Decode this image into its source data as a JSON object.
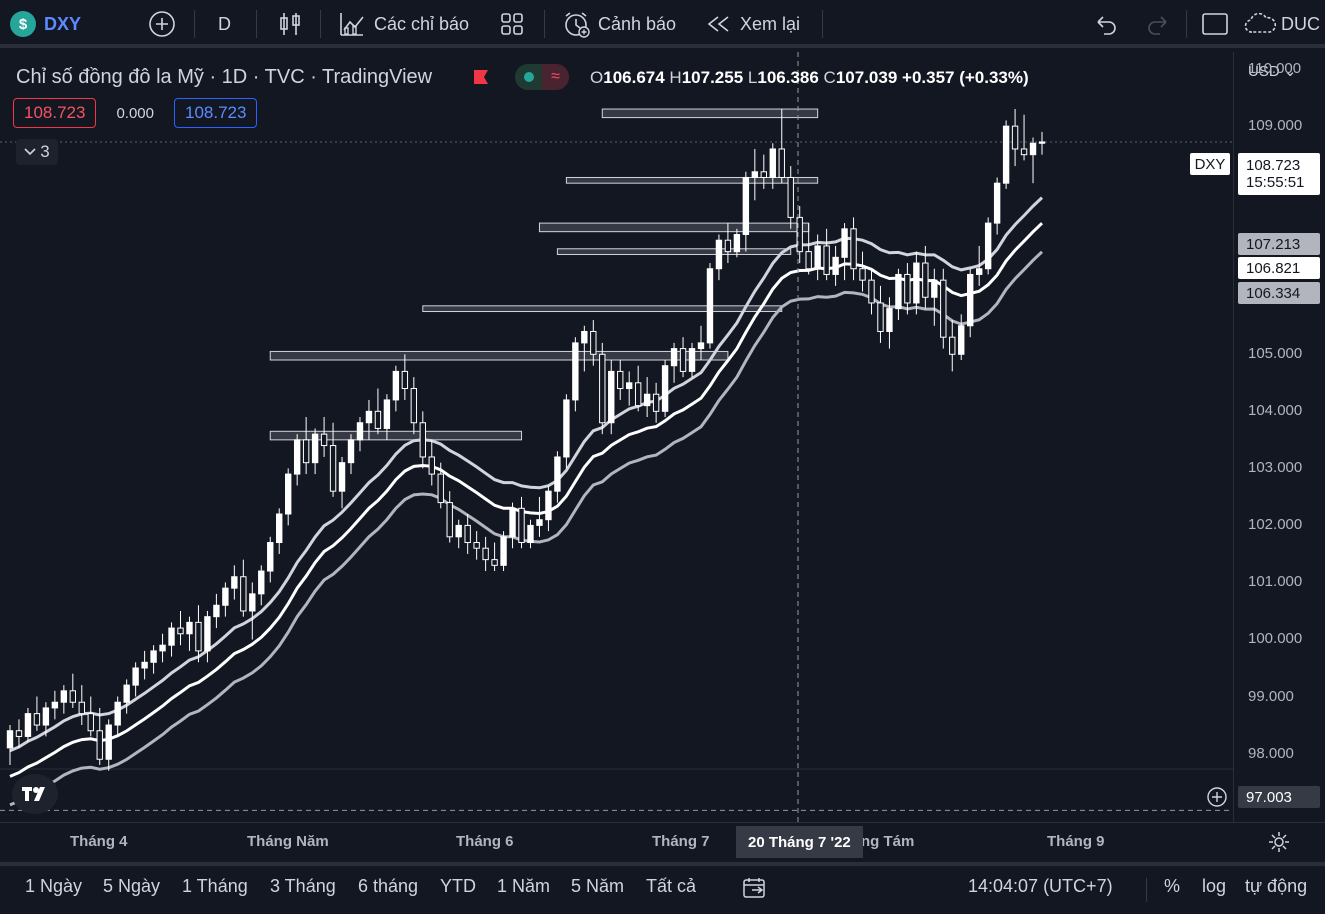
{
  "toolbar": {
    "symbol": "DXY",
    "symbol_coin": "$",
    "interval": "D",
    "indicators_label": "Các chỉ báo",
    "alerts_label": "Cảnh báo",
    "replay_label": "Xem lại",
    "account_label": "DUC"
  },
  "legend": {
    "title": "Chỉ số đồng đô la Mỹ · 1D · TVC · TradingView",
    "open_label": "O",
    "open": "106.674",
    "high_label": "H",
    "high": "107.255",
    "low_label": "L",
    "low": "106.386",
    "close_label": "C",
    "close": "107.039",
    "change": "+0.357 (+0.33%)",
    "indicator_values": [
      "108.723",
      "0.000",
      "108.723"
    ],
    "collapsed_count": "3"
  },
  "price_axis": {
    "currency": "USD",
    "labels": [
      "110.000",
      "109.000",
      "108.000",
      "107.000",
      "106.000",
      "105.000",
      "104.000",
      "103.000",
      "102.000",
      "101.000",
      "100.000",
      "99.000",
      "98.000"
    ],
    "symbol_tag": "DXY",
    "last_price": "108.723",
    "countdown": "15:55:51",
    "band_upper": "107.213",
    "band_mid": "106.821",
    "band_lower": "106.334",
    "crosshair_price": "97.003"
  },
  "time_axis": {
    "labels": [
      "Tháng 4",
      "Tháng Năm",
      "Tháng 6",
      "Tháng 7",
      "ng Tám",
      "Tháng 9"
    ],
    "crosshair_date": "20 Tháng 7 '22"
  },
  "bottom_bar": {
    "ranges": [
      "1 Ngày",
      "5 Ngày",
      "1 Tháng",
      "3 Tháng",
      "6 tháng",
      "YTD",
      "1 Năm",
      "5 Năm",
      "Tất cả"
    ],
    "clock": "14:04:07 (UTC+7)",
    "percent": "%",
    "log": "log",
    "auto": "tự động"
  },
  "colors": {
    "background": "#131722",
    "candle": "#ffffff",
    "accent_blue": "#2962ff",
    "accent_red": "#f23645",
    "accent_green": "#26a69a"
  },
  "chart_data": {
    "type": "candlestick",
    "symbol": "DXY",
    "ylim": [
      96.8,
      110.3
    ],
    "bands": {
      "names": [
        "upper",
        "middle",
        "lower"
      ],
      "last_values": [
        107.213,
        106.821,
        106.334
      ]
    },
    "zones": [
      {
        "low": 109.15,
        "high": 109.3
      },
      {
        "low": 108.0,
        "high": 108.1
      },
      {
        "low": 107.15,
        "high": 107.3
      },
      {
        "low": 106.75,
        "high": 106.85
      },
      {
        "low": 105.75,
        "high": 105.85
      },
      {
        "low": 104.9,
        "high": 105.05
      },
      {
        "low": 103.5,
        "high": 103.65
      }
    ],
    "candles": [
      [
        98.1,
        98.5,
        97.8,
        98.4
      ],
      [
        98.4,
        98.6,
        98.1,
        98.3
      ],
      [
        98.3,
        98.8,
        98.2,
        98.7
      ],
      [
        98.7,
        99.0,
        98.4,
        98.5
      ],
      [
        98.5,
        98.9,
        98.3,
        98.8
      ],
      [
        98.8,
        99.1,
        98.6,
        98.9
      ],
      [
        98.9,
        99.2,
        98.7,
        99.1
      ],
      [
        99.1,
        99.4,
        98.8,
        98.9
      ],
      [
        98.9,
        99.2,
        98.5,
        98.7
      ],
      [
        98.7,
        99.0,
        98.3,
        98.4
      ],
      [
        98.4,
        98.8,
        97.8,
        97.9
      ],
      [
        97.9,
        98.6,
        97.7,
        98.5
      ],
      [
        98.5,
        99.0,
        98.3,
        98.9
      ],
      [
        98.9,
        99.3,
        98.7,
        99.2
      ],
      [
        99.2,
        99.6,
        99.0,
        99.5
      ],
      [
        99.5,
        99.8,
        99.3,
        99.6
      ],
      [
        99.6,
        99.9,
        99.4,
        99.8
      ],
      [
        99.8,
        100.1,
        99.6,
        99.9
      ],
      [
        99.9,
        100.3,
        99.7,
        100.2
      ],
      [
        100.2,
        100.5,
        99.9,
        100.1
      ],
      [
        100.1,
        100.4,
        99.8,
        100.3
      ],
      [
        100.3,
        100.6,
        99.6,
        99.8
      ],
      [
        99.8,
        100.5,
        99.6,
        100.4
      ],
      [
        100.4,
        100.8,
        100.2,
        100.6
      ],
      [
        100.6,
        101.0,
        100.4,
        100.9
      ],
      [
        100.9,
        101.3,
        100.7,
        101.1
      ],
      [
        101.1,
        101.4,
        100.4,
        100.5
      ],
      [
        100.5,
        101.0,
        100.0,
        100.8
      ],
      [
        100.8,
        101.3,
        100.6,
        101.2
      ],
      [
        101.2,
        101.8,
        101.0,
        101.7
      ],
      [
        101.7,
        102.3,
        101.5,
        102.2
      ],
      [
        102.2,
        103.0,
        102.0,
        102.9
      ],
      [
        102.9,
        103.6,
        102.7,
        103.5
      ],
      [
        103.5,
        103.9,
        102.9,
        103.1
      ],
      [
        103.1,
        103.7,
        102.9,
        103.6
      ],
      [
        103.6,
        103.9,
        103.2,
        103.4
      ],
      [
        103.4,
        103.8,
        102.5,
        102.6
      ],
      [
        102.6,
        103.2,
        102.3,
        103.1
      ],
      [
        103.1,
        103.6,
        102.9,
        103.5
      ],
      [
        103.5,
        103.9,
        103.3,
        103.8
      ],
      [
        103.8,
        104.2,
        103.5,
        104.0
      ],
      [
        104.0,
        104.4,
        103.6,
        103.7
      ],
      [
        103.7,
        104.3,
        103.5,
        104.2
      ],
      [
        104.2,
        104.8,
        104.0,
        104.7
      ],
      [
        104.7,
        105.0,
        104.2,
        104.4
      ],
      [
        104.4,
        104.6,
        103.6,
        103.8
      ],
      [
        103.8,
        104.0,
        103.0,
        103.2
      ],
      [
        103.2,
        103.5,
        102.7,
        102.9
      ],
      [
        102.9,
        103.1,
        102.3,
        102.4
      ],
      [
        102.4,
        102.6,
        101.7,
        101.8
      ],
      [
        101.8,
        102.1,
        101.6,
        102.0
      ],
      [
        102.0,
        102.2,
        101.5,
        101.7
      ],
      [
        101.7,
        101.9,
        101.4,
        101.6
      ],
      [
        101.6,
        101.8,
        101.2,
        101.4
      ],
      [
        101.4,
        101.7,
        101.2,
        101.3
      ],
      [
        101.3,
        101.9,
        101.2,
        101.8
      ],
      [
        101.8,
        102.4,
        101.6,
        102.3
      ],
      [
        102.3,
        102.5,
        101.6,
        101.7
      ],
      [
        101.7,
        102.1,
        101.6,
        102.0
      ],
      [
        102.0,
        102.5,
        101.8,
        102.1
      ],
      [
        102.1,
        102.7,
        101.9,
        102.6
      ],
      [
        102.6,
        103.3,
        102.4,
        103.2
      ],
      [
        103.2,
        104.3,
        103.0,
        104.2
      ],
      [
        104.2,
        105.3,
        104.0,
        105.2
      ],
      [
        105.2,
        105.5,
        104.7,
        105.4
      ],
      [
        105.4,
        105.6,
        104.8,
        105.0
      ],
      [
        105.0,
        105.2,
        103.6,
        103.8
      ],
      [
        103.8,
        104.9,
        103.6,
        104.7
      ],
      [
        104.7,
        104.9,
        104.2,
        104.4
      ],
      [
        104.4,
        104.7,
        104.1,
        104.5
      ],
      [
        104.5,
        104.8,
        104.0,
        104.1
      ],
      [
        104.1,
        104.6,
        103.9,
        104.3
      ],
      [
        104.3,
        104.5,
        103.8,
        104.0
      ],
      [
        104.0,
        104.9,
        103.9,
        104.8
      ],
      [
        104.8,
        105.2,
        104.5,
        105.1
      ],
      [
        105.1,
        105.3,
        104.6,
        104.7
      ],
      [
        104.7,
        105.2,
        104.6,
        105.1
      ],
      [
        105.1,
        105.5,
        104.9,
        105.2
      ],
      [
        105.2,
        106.6,
        105.1,
        106.5
      ],
      [
        106.5,
        107.1,
        106.3,
        107.0
      ],
      [
        107.0,
        107.3,
        106.6,
        106.8
      ],
      [
        106.8,
        107.2,
        106.7,
        107.1
      ],
      [
        107.1,
        108.2,
        106.8,
        108.1
      ],
      [
        108.1,
        108.6,
        107.7,
        108.2
      ],
      [
        108.2,
        108.5,
        107.9,
        108.1
      ],
      [
        108.1,
        108.7,
        107.9,
        108.6
      ],
      [
        108.6,
        109.3,
        108.0,
        108.1
      ],
      [
        108.1,
        108.3,
        107.2,
        107.4
      ],
      [
        107.4,
        107.6,
        106.6,
        106.8
      ],
      [
        106.8,
        107.3,
        106.4,
        106.5
      ],
      [
        106.5,
        107.1,
        106.3,
        106.9
      ],
      [
        106.9,
        107.2,
        106.3,
        106.4
      ],
      [
        106.4,
        106.9,
        106.2,
        106.7
      ],
      [
        106.7,
        107.3,
        106.3,
        107.2
      ],
      [
        107.2,
        107.4,
        106.3,
        106.5
      ],
      [
        106.5,
        106.8,
        106.1,
        106.3
      ],
      [
        106.3,
        106.5,
        105.7,
        105.9
      ],
      [
        105.9,
        106.2,
        105.2,
        105.4
      ],
      [
        105.4,
        106.0,
        105.1,
        105.8
      ],
      [
        105.8,
        106.5,
        105.6,
        106.4
      ],
      [
        106.4,
        106.6,
        105.7,
        105.9
      ],
      [
        105.9,
        106.8,
        105.7,
        106.6
      ],
      [
        106.6,
        106.9,
        105.8,
        106.0
      ],
      [
        106.0,
        106.5,
        105.5,
        106.3
      ],
      [
        106.3,
        106.5,
        105.1,
        105.3
      ],
      [
        105.3,
        105.6,
        104.7,
        105.0
      ],
      [
        105.0,
        105.7,
        104.9,
        105.5
      ],
      [
        105.5,
        106.5,
        105.3,
        106.4
      ],
      [
        106.4,
        106.9,
        106.2,
        106.5
      ],
      [
        106.5,
        107.4,
        106.4,
        107.3
      ],
      [
        107.3,
        108.1,
        107.1,
        108.0
      ],
      [
        108.0,
        109.1,
        107.9,
        109.0
      ],
      [
        109.0,
        109.3,
        108.3,
        108.6
      ],
      [
        108.6,
        109.2,
        108.4,
        108.5
      ],
      [
        108.5,
        108.8,
        108.0,
        108.7
      ],
      [
        108.7,
        108.9,
        108.5,
        108.723
      ]
    ]
  }
}
